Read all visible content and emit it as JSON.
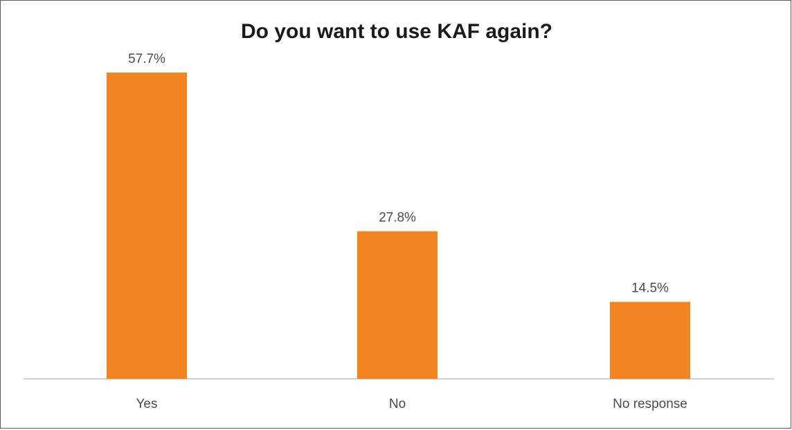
{
  "chart_data": {
    "type": "bar",
    "title": "Do you want to use KAF again?",
    "categories": [
      "Yes",
      "No",
      "No response"
    ],
    "values": [
      57.7,
      27.8,
      14.5
    ],
    "data_labels": [
      "57.7%",
      "27.8%",
      "14.5%"
    ],
    "xlabel": "",
    "ylabel": "",
    "ylim": [
      0,
      60
    ],
    "grid": false,
    "legend": "none",
    "bar_color": "#F28522",
    "axis_color": "#bfbfbf"
  }
}
